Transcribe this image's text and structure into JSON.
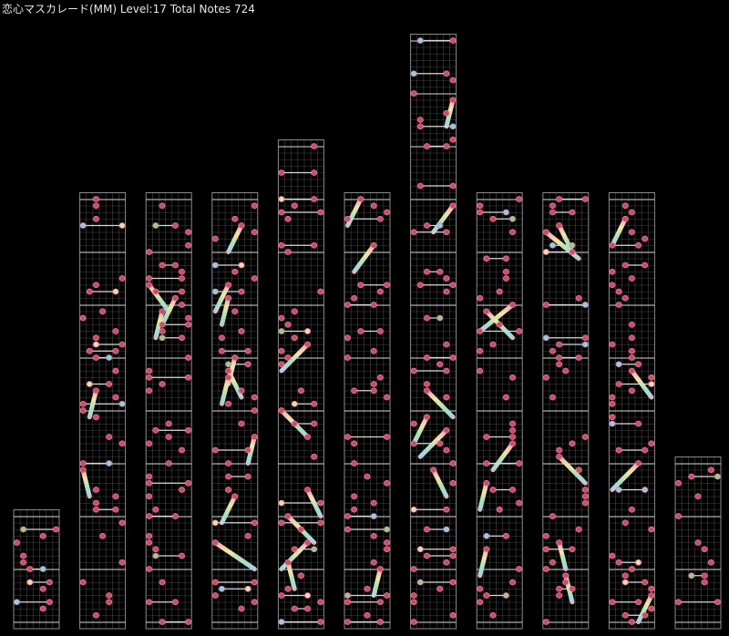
{
  "header": {
    "title": "恋心マスカレード(MM) Level:17 Total Notes 724"
  },
  "colors": {
    "background": "#000000",
    "grid": "#8a8a8a",
    "measure_line": "#d8d8d8",
    "tap": "#d2476a",
    "tap_ring": "#f07a96",
    "break": "#f5d9b0",
    "ex_blue": "#7fd4f0",
    "ex_green": "#8fd08a",
    "hold_line": "#d9d9d9",
    "slide_gradient": [
      "#f4a6b6",
      "#f6e3a0",
      "#a6e4b8",
      "#a6d2f0"
    ]
  },
  "columns": [
    {
      "measures": 2.25
    },
    {
      "measures": 8.25
    },
    {
      "measures": 8.25
    },
    {
      "measures": 8.25
    },
    {
      "measures": 9.25
    },
    {
      "measures": 8.25
    },
    {
      "measures": 11.25
    },
    {
      "measures": 8.25
    },
    {
      "measures": 8.25
    },
    {
      "measures": 8.25
    },
    {
      "measures": 3.25
    }
  ]
}
